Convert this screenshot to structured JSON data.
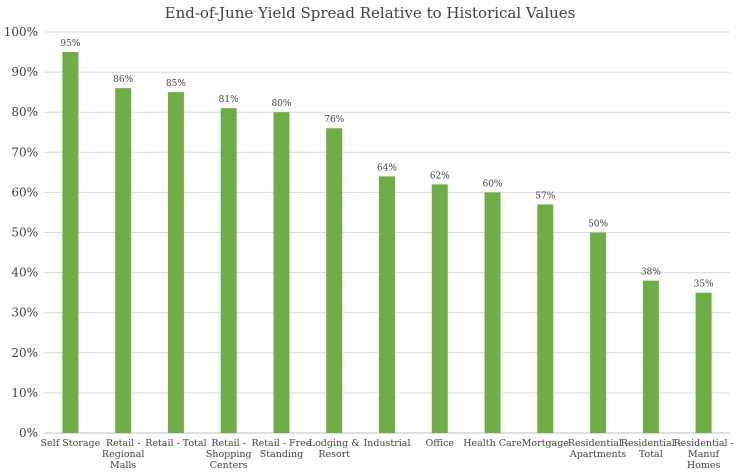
{
  "chart_data": {
    "type": "bar",
    "title": "End-of-June Yield Spread Relative to Historical Values",
    "xlabel": "",
    "ylabel": "",
    "ylim": [
      0,
      100
    ],
    "yticks": [
      "0%",
      "10%",
      "20%",
      "30%",
      "40%",
      "50%",
      "60%",
      "70%",
      "80%",
      "90%",
      "100%"
    ],
    "grid": true,
    "bar_color": "#70ad47",
    "categories": [
      [
        "Self Storage"
      ],
      [
        "Retail -",
        "Regional",
        "Malls"
      ],
      [
        "Retail - Total"
      ],
      [
        "Retail -",
        "Shopping",
        "Centers"
      ],
      [
        "Retail - Free",
        "Standing"
      ],
      [
        "Lodging &",
        "Resort"
      ],
      [
        "Industrial"
      ],
      [
        "Office"
      ],
      [
        "Health Care"
      ],
      [
        "Mortgage"
      ],
      [
        "Residential -",
        "Apartments"
      ],
      [
        "Residential -",
        "Total"
      ],
      [
        "Residential -",
        "Manuf",
        "Homes"
      ]
    ],
    "values": [
      95,
      86,
      85,
      81,
      80,
      76,
      64,
      62,
      60,
      57,
      50,
      38,
      35
    ],
    "data_labels": [
      "95%",
      "86%",
      "85%",
      "81%",
      "80%",
      "76%",
      "64%",
      "62%",
      "60%",
      "57%",
      "50%",
      "38%",
      "35%"
    ]
  }
}
